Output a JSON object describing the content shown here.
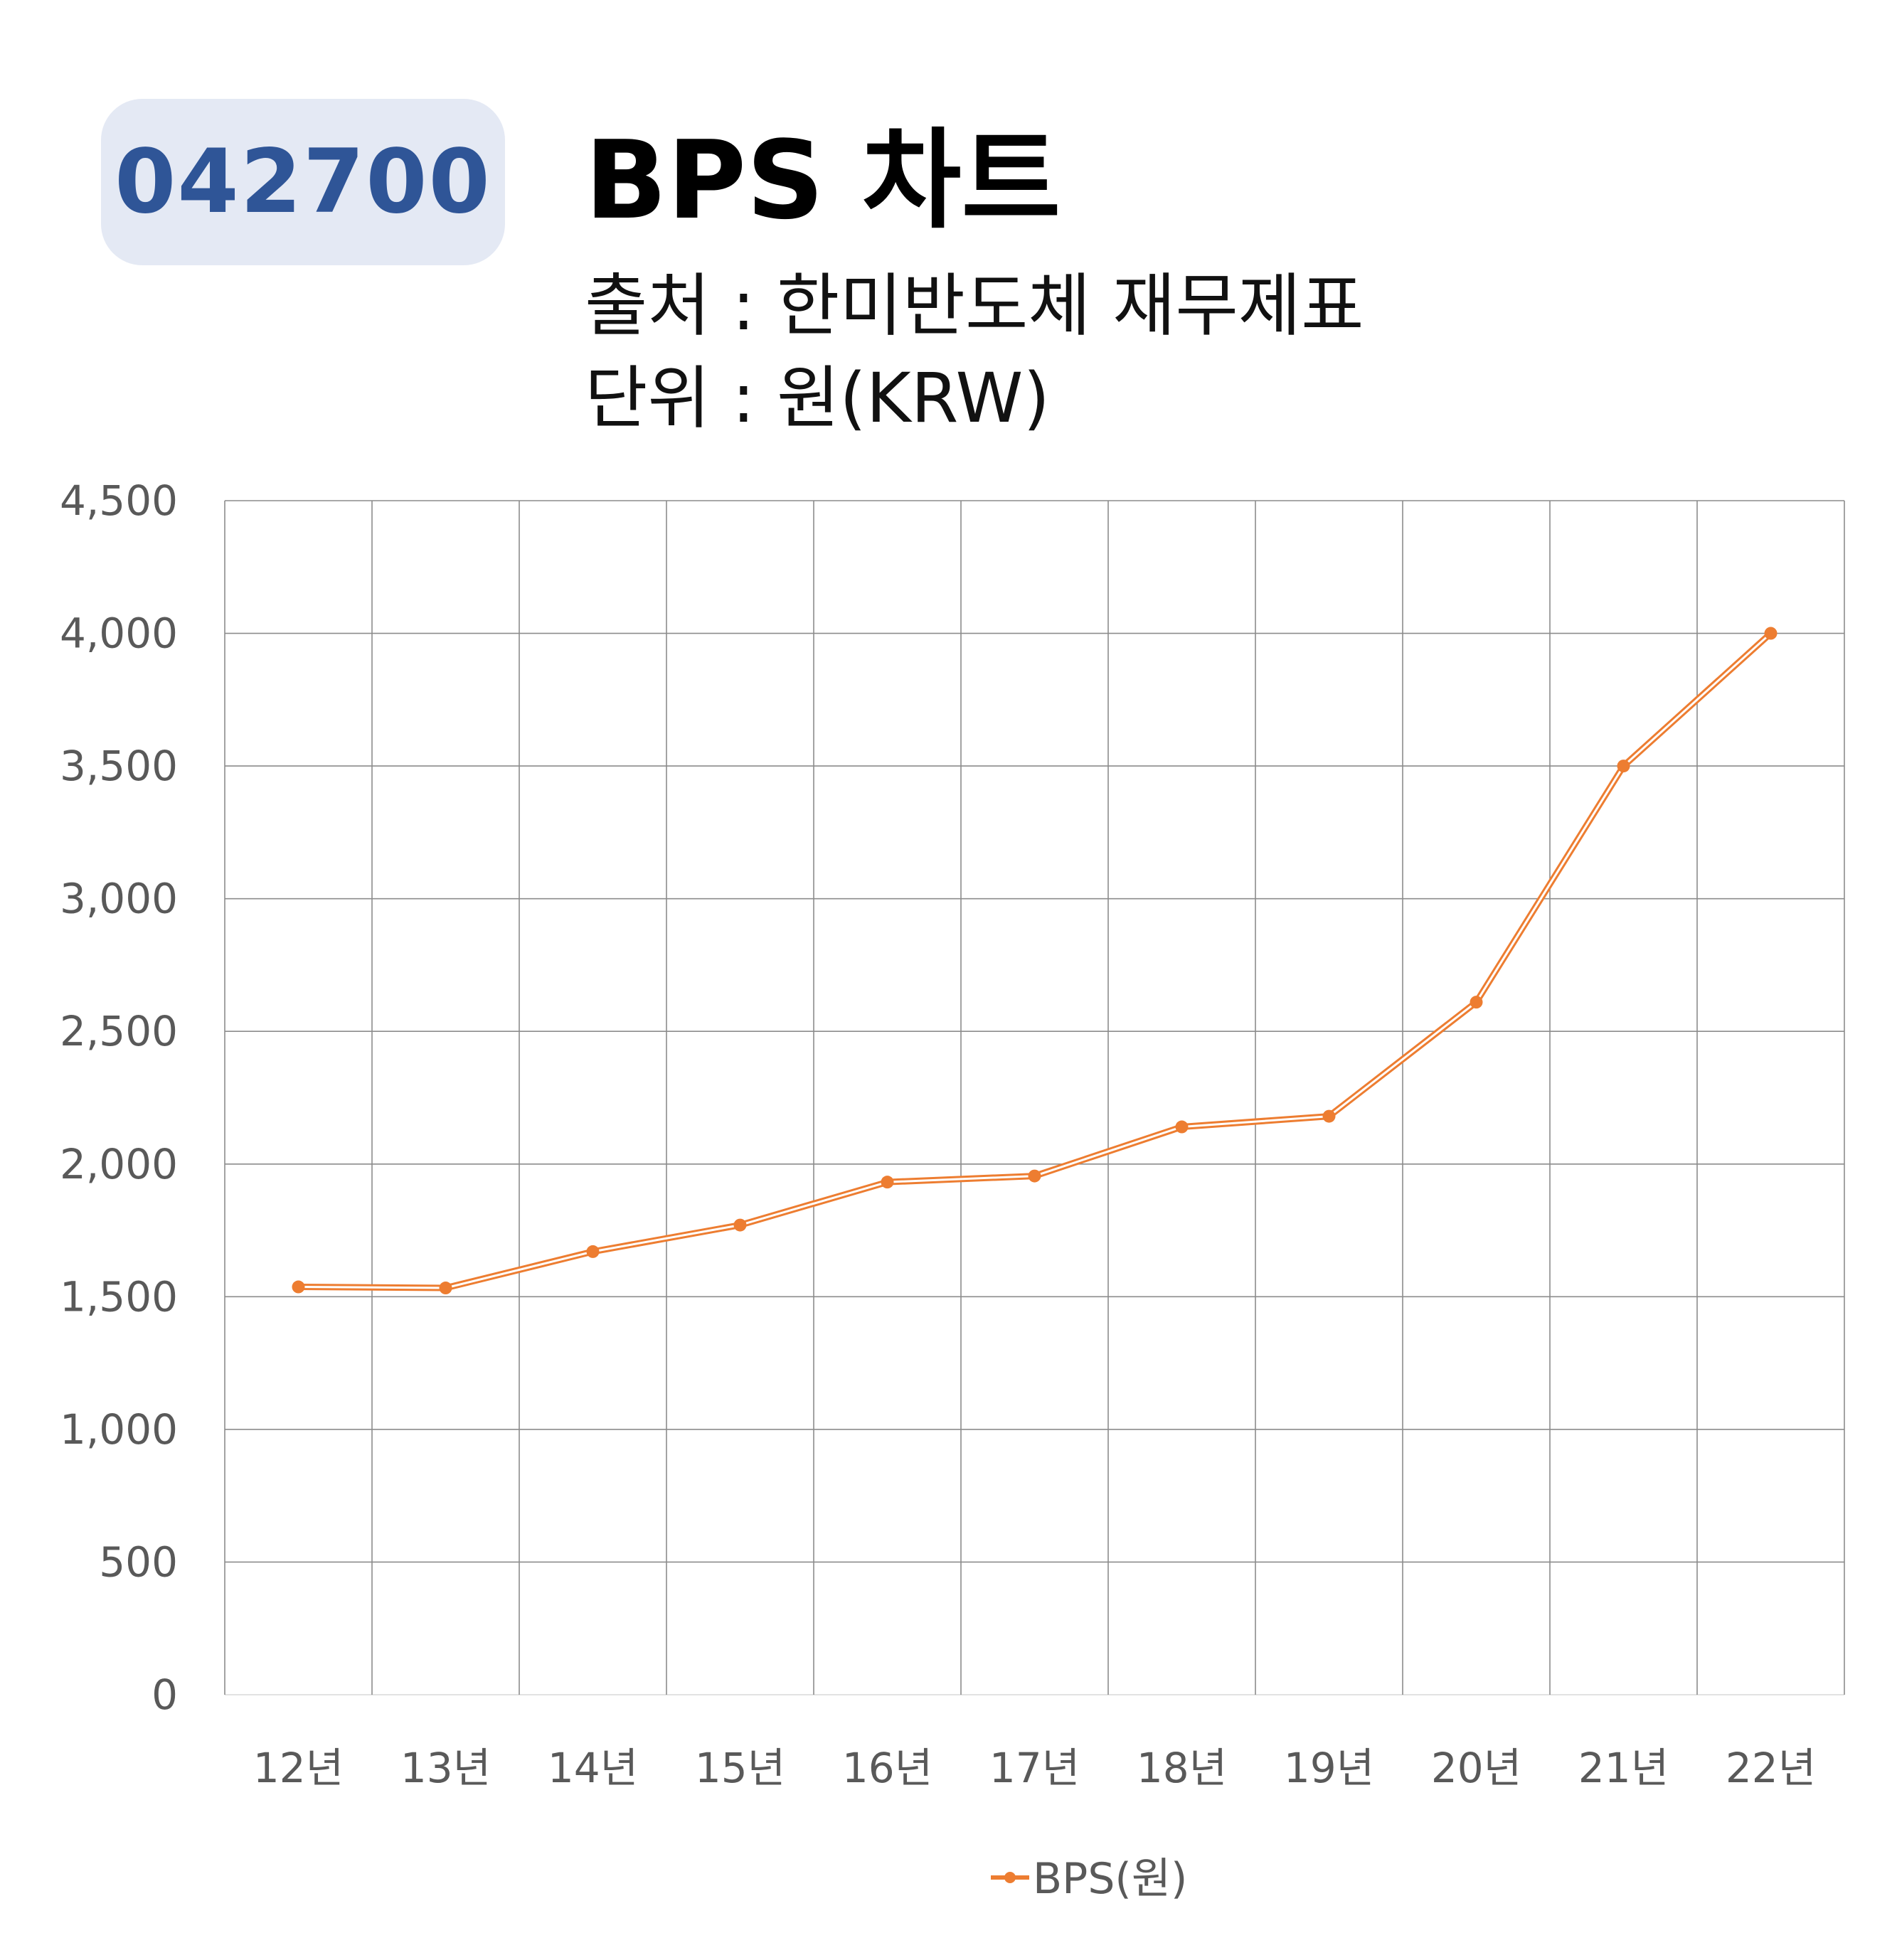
{
  "header": {
    "code": "042700",
    "title": "BPS 차트",
    "source": "출처 : 한미반도체 재무제표",
    "unit": "단위 : 원(KRW)"
  },
  "colors": {
    "series": "#ed7d31",
    "grid": "#8c8c8c",
    "badge_bg": "#e4e9f4",
    "badge_text": "#2f5597"
  },
  "chart_data": {
    "type": "line",
    "title": "BPS 차트",
    "categories": [
      "12년",
      "13년",
      "14년",
      "15년",
      "16년",
      "17년",
      "18년",
      "19년",
      "20년",
      "21년",
      "22년"
    ],
    "series": [
      {
        "name": "BPS(원)",
        "values": [
          1537,
          1533,
          1670,
          1770,
          1932,
          1955,
          2140,
          2180,
          2610,
          3500,
          4000
        ]
      }
    ],
    "ylim": [
      0,
      4500
    ],
    "yticks": [
      0,
      500,
      1000,
      1500,
      2000,
      2500,
      3000,
      3500,
      4000,
      4500
    ],
    "ytick_labels": [
      "0",
      "500",
      "1,000",
      "1,500",
      "2,000",
      "2,500",
      "3,000",
      "3,500",
      "4,000",
      "4,500"
    ],
    "grid": true,
    "legend": "bottom"
  }
}
